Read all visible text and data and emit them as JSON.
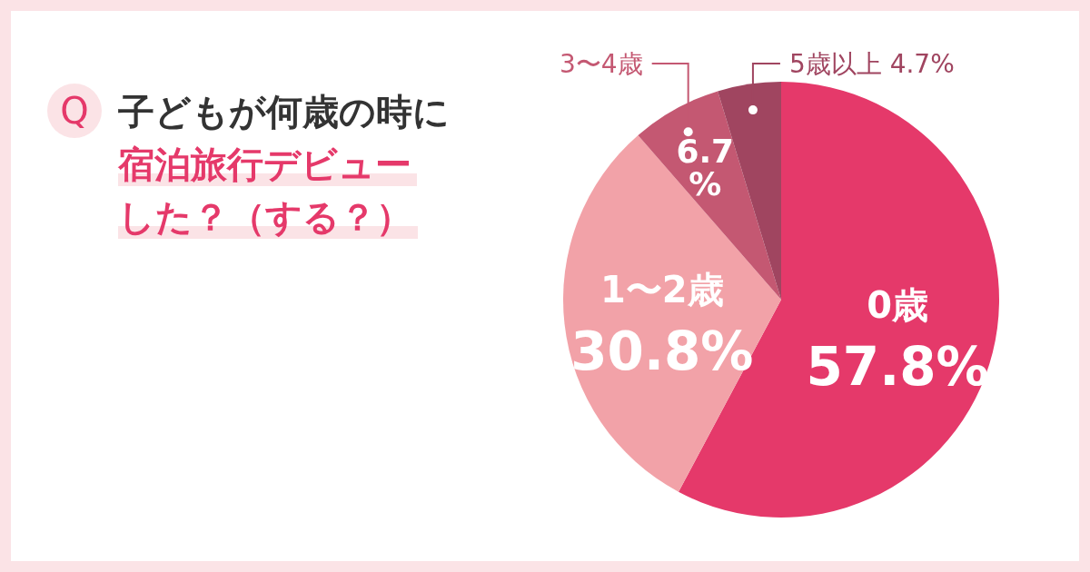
{
  "chart_data": {
    "type": "pie",
    "title": "子どもが何歳の時に",
    "subtitle": "宿泊旅行デビューした？（する？）",
    "annotations": [
      "Q"
    ],
    "categories": [
      "0歳",
      "1〜2歳",
      "3〜4歳",
      "5歳以上"
    ],
    "values": [
      57.8,
      30.8,
      6.7,
      4.7
    ],
    "colors": [
      "#e5396a",
      "#f2a2a8",
      "#c45872",
      "#a04560"
    ],
    "value_labels": [
      "57.8%",
      "30.8%",
      "6.7%",
      "4.7%"
    ]
  }
}
